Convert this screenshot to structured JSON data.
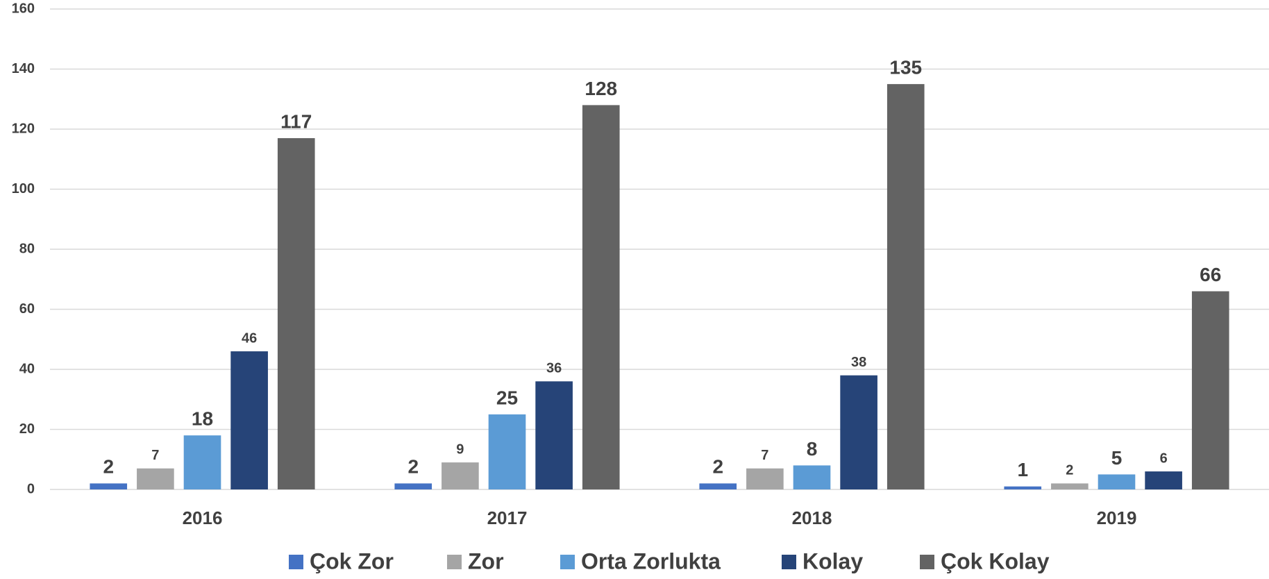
{
  "chart_data": {
    "type": "bar",
    "categories": [
      "2016",
      "2017",
      "2018",
      "2019"
    ],
    "series": [
      {
        "name": "Çok Zor",
        "color": "#4472c4",
        "values": [
          2,
          2,
          2,
          1
        ]
      },
      {
        "name": "Zor",
        "color": "#a5a5a5",
        "values": [
          7,
          9,
          7,
          2
        ]
      },
      {
        "name": "Orta Zorlukta",
        "color": "#5b9bd5",
        "values": [
          18,
          25,
          8,
          5
        ]
      },
      {
        "name": "Kolay",
        "color": "#264478",
        "values": [
          46,
          36,
          38,
          6
        ]
      },
      {
        "name": "Çok Kolay",
        "color": "#636363",
        "values": [
          117,
          128,
          135,
          66
        ]
      }
    ],
    "ylim": [
      0,
      160
    ],
    "yticks": [
      0,
      20,
      40,
      60,
      80,
      100,
      120,
      140,
      160
    ],
    "grid": true,
    "legend": "bottom"
  }
}
